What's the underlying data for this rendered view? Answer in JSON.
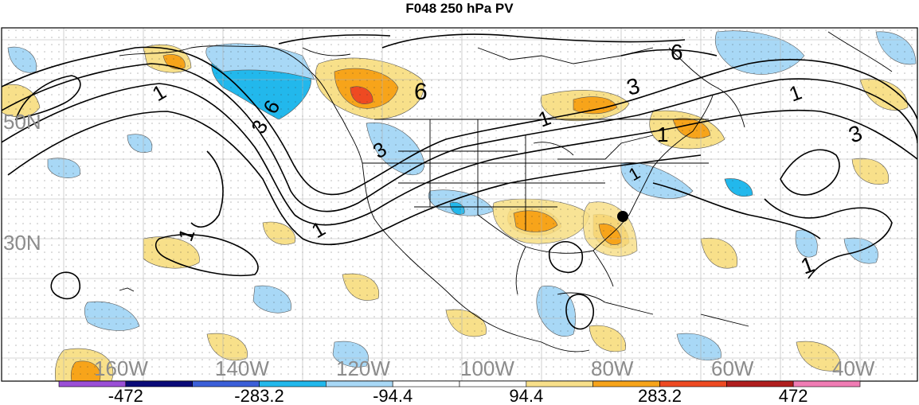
{
  "title": "F048 250 hPa PV",
  "lat_labels": [
    {
      "key": "lat-50n",
      "text": "50N"
    },
    {
      "key": "lat-30n",
      "text": "30N"
    }
  ],
  "lon_labels": [
    "160W",
    "140W",
    "120W",
    "100W",
    "80W",
    "60W",
    "40W"
  ],
  "contour_labels": [
    "1",
    "3",
    "6"
  ],
  "colorbar": {
    "colors": [
      "#9a4fd6",
      "#0a0a78",
      "#3b5fd8",
      "#22b8ec",
      "#a8d8f6",
      "#ffffff",
      "#ffffff",
      "#f8e08a",
      "#f7a41a",
      "#ee4a22",
      "#b01e1e",
      "#f07cb4"
    ],
    "tick_labels": [
      "-472",
      "-283.2",
      "-94.4",
      "94.4",
      "283.2",
      "472"
    ]
  },
  "colors": {
    "positive_light": "#f8e08a",
    "positive_mid": "#f7a41a",
    "positive_strong": "#ee4a22",
    "negative_light": "#a8d8f6",
    "negative_mid": "#22b8ec",
    "label_gray": "#8c8c8c",
    "contour": "#000000"
  },
  "markers": [
    {
      "name": "station-marker",
      "shape": "filled-circle"
    }
  ]
}
